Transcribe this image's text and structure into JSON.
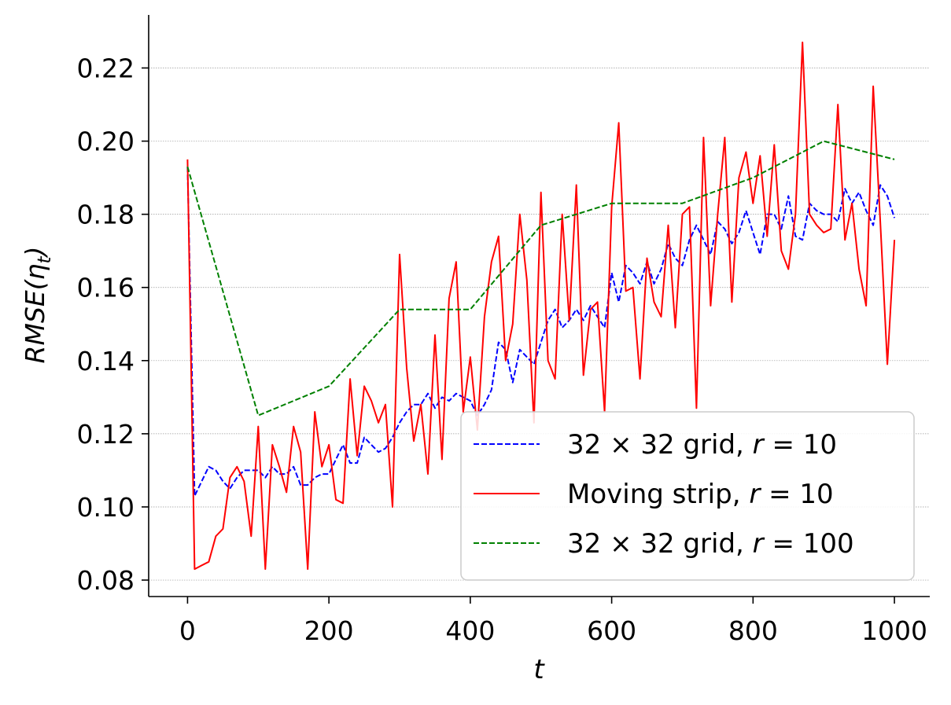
{
  "chart_data": {
    "type": "line",
    "title": "",
    "xlabel": "t",
    "ylabel_main": "RMSE(η",
    "ylabel_sub": "t",
    "ylabel_close": ")",
    "xlim": [
      -55,
      1050
    ],
    "ylim": [
      0.0755,
      0.2345
    ],
    "xticks": [
      0,
      200,
      400,
      600,
      800,
      1000
    ],
    "yticks": [
      0.08,
      0.1,
      0.12,
      0.14,
      0.16,
      0.18,
      0.2,
      0.22
    ],
    "xtick_labels": [
      "0",
      "200",
      "400",
      "600",
      "800",
      "1000"
    ],
    "ytick_labels": [
      "0.08",
      "0.10",
      "0.12",
      "0.14",
      "0.16",
      "0.18",
      "0.20",
      "0.22"
    ],
    "grid": "horizontal",
    "legend_position": "lower-right",
    "series": [
      {
        "name": "32 × 32 grid, r = 10",
        "legend_prefix": "32 × 32 grid, ",
        "legend_var": "r",
        "legend_suffix": " = 10",
        "color": "#0000ff",
        "dash": "dashed",
        "x": [
          0,
          10,
          20,
          30,
          40,
          50,
          60,
          70,
          80,
          90,
          100,
          110,
          120,
          130,
          140,
          150,
          160,
          170,
          180,
          190,
          200,
          210,
          220,
          230,
          240,
          250,
          260,
          270,
          280,
          290,
          300,
          310,
          320,
          330,
          340,
          350,
          360,
          370,
          380,
          390,
          400,
          410,
          420,
          430,
          440,
          450,
          460,
          470,
          480,
          490,
          500,
          510,
          520,
          530,
          540,
          550,
          560,
          570,
          580,
          590,
          600,
          610,
          620,
          630,
          640,
          650,
          660,
          670,
          680,
          690,
          700,
          710,
          720,
          730,
          740,
          750,
          760,
          770,
          780,
          790,
          800,
          810,
          820,
          830,
          840,
          850,
          860,
          870,
          880,
          890,
          900,
          910,
          920,
          930,
          940,
          950,
          960,
          970,
          980,
          990,
          1000
        ],
        "values": [
          0.193,
          0.103,
          0.107,
          0.111,
          0.11,
          0.107,
          0.105,
          0.108,
          0.11,
          0.11,
          0.11,
          0.108,
          0.111,
          0.109,
          0.109,
          0.111,
          0.106,
          0.106,
          0.108,
          0.109,
          0.109,
          0.113,
          0.117,
          0.112,
          0.112,
          0.119,
          0.117,
          0.115,
          0.116,
          0.119,
          0.123,
          0.126,
          0.128,
          0.128,
          0.131,
          0.127,
          0.13,
          0.129,
          0.131,
          0.13,
          0.129,
          0.125,
          0.128,
          0.132,
          0.145,
          0.143,
          0.134,
          0.143,
          0.141,
          0.139,
          0.145,
          0.151,
          0.154,
          0.149,
          0.151,
          0.154,
          0.151,
          0.155,
          0.152,
          0.149,
          0.164,
          0.156,
          0.166,
          0.164,
          0.161,
          0.167,
          0.161,
          0.165,
          0.172,
          0.168,
          0.166,
          0.173,
          0.177,
          0.173,
          0.169,
          0.178,
          0.176,
          0.172,
          0.175,
          0.181,
          0.175,
          0.169,
          0.18,
          0.18,
          0.176,
          0.185,
          0.174,
          0.173,
          0.183,
          0.181,
          0.18,
          0.18,
          0.178,
          0.187,
          0.183,
          0.186,
          0.181,
          0.177,
          0.188,
          0.185,
          0.179
        ]
      },
      {
        "name": "Moving strip, r = 10",
        "legend_prefix": "Moving strip, ",
        "legend_var": "r",
        "legend_suffix": " = 10",
        "color": "#ff0000",
        "dash": "solid",
        "x": [
          0,
          10,
          20,
          30,
          40,
          50,
          60,
          70,
          80,
          90,
          100,
          110,
          120,
          130,
          140,
          150,
          160,
          170,
          180,
          190,
          200,
          210,
          220,
          230,
          240,
          250,
          260,
          270,
          280,
          290,
          300,
          310,
          320,
          330,
          340,
          350,
          360,
          370,
          380,
          390,
          400,
          410,
          420,
          430,
          440,
          450,
          460,
          470,
          480,
          490,
          500,
          510,
          520,
          530,
          540,
          550,
          560,
          570,
          580,
          590,
          600,
          610,
          620,
          630,
          640,
          650,
          660,
          670,
          680,
          690,
          700,
          710,
          720,
          730,
          740,
          750,
          760,
          770,
          780,
          790,
          800,
          810,
          820,
          830,
          840,
          850,
          860,
          870,
          880,
          890,
          900,
          910,
          920,
          930,
          940,
          950,
          960,
          970,
          980,
          990,
          1000
        ],
        "values": [
          0.195,
          0.083,
          0.084,
          0.085,
          0.092,
          0.094,
          0.108,
          0.111,
          0.107,
          0.092,
          0.122,
          0.083,
          0.117,
          0.111,
          0.104,
          0.122,
          0.115,
          0.083,
          0.126,
          0.111,
          0.117,
          0.102,
          0.101,
          0.135,
          0.114,
          0.133,
          0.129,
          0.123,
          0.128,
          0.1,
          0.169,
          0.138,
          0.118,
          0.128,
          0.109,
          0.147,
          0.113,
          0.157,
          0.167,
          0.126,
          0.141,
          0.121,
          0.152,
          0.167,
          0.174,
          0.14,
          0.15,
          0.18,
          0.162,
          0.123,
          0.186,
          0.14,
          0.135,
          0.18,
          0.151,
          0.188,
          0.136,
          0.154,
          0.156,
          0.126,
          0.182,
          0.205,
          0.159,
          0.16,
          0.135,
          0.168,
          0.156,
          0.152,
          0.177,
          0.149,
          0.18,
          0.182,
          0.127,
          0.201,
          0.155,
          0.18,
          0.201,
          0.156,
          0.19,
          0.197,
          0.183,
          0.196,
          0.174,
          0.199,
          0.17,
          0.165,
          0.18,
          0.227,
          0.18,
          0.177,
          0.175,
          0.176,
          0.21,
          0.173,
          0.183,
          0.165,
          0.155,
          0.215,
          0.178,
          0.139,
          0.173
        ]
      },
      {
        "name": "32 × 32 grid, r = 100",
        "legend_prefix": "32 × 32 grid, ",
        "legend_var": "r",
        "legend_suffix": " = 100",
        "color": "#008000",
        "dash": "dashed",
        "x": [
          0,
          100,
          200,
          300,
          400,
          500,
          600,
          700,
          800,
          900,
          1000
        ],
        "values": [
          0.193,
          0.125,
          0.133,
          0.154,
          0.154,
          0.177,
          0.183,
          0.183,
          0.19,
          0.2,
          0.195
        ]
      }
    ]
  }
}
